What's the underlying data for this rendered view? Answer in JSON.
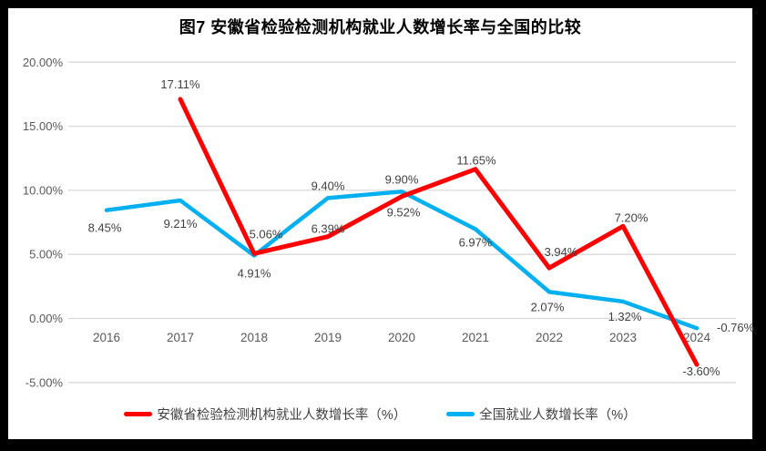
{
  "title": "图7 安徽省检验检测机构就业人数增长率与全国的比较",
  "chart_data": {
    "type": "line",
    "title": "图7 安徽省检验检测机构就业人数增长率与全国的比较",
    "categories": [
      "2016",
      "2017",
      "2018",
      "2019",
      "2020",
      "2021",
      "2022",
      "2023",
      "2024"
    ],
    "series": [
      {
        "id": "anhui",
        "name": "安徽省检验检测机构就业人数增长率（%）",
        "color": "#FF0000",
        "values": [
          null,
          17.11,
          5.06,
          6.39,
          9.52,
          11.65,
          3.94,
          7.2,
          -3.6
        ],
        "labels": [
          null,
          "17.11%",
          "5.06%",
          "6.39%",
          "9.52%",
          "11.65%",
          "3.94%",
          "7.20%",
          "-3.60%"
        ]
      },
      {
        "id": "national",
        "name": "全国就业人数增长率（%）",
        "color": "#00B0F0",
        "values": [
          8.45,
          9.21,
          4.91,
          9.4,
          9.9,
          6.97,
          2.07,
          1.32,
          -0.76
        ],
        "labels": [
          "8.45%",
          "9.21%",
          "4.91%",
          "9.40%",
          "9.90%",
          "6.97%",
          "2.07%",
          "1.32%",
          "-0.76%"
        ]
      }
    ],
    "y_axis": {
      "min": -5,
      "max": 20,
      "step": 5,
      "tick_labels": [
        "20.00%",
        "15.00%",
        "10.00%",
        "5.00%",
        "0.00%",
        "-5.00%"
      ]
    },
    "grid": true,
    "legend_position": "bottom",
    "colors": {
      "grid_line": "#D9D9D9",
      "axis_text": "#595959",
      "data_label_text": "#404040",
      "title_text": "#000000",
      "frame_border": "#000000",
      "plot_background": "#FFFFFF"
    }
  }
}
